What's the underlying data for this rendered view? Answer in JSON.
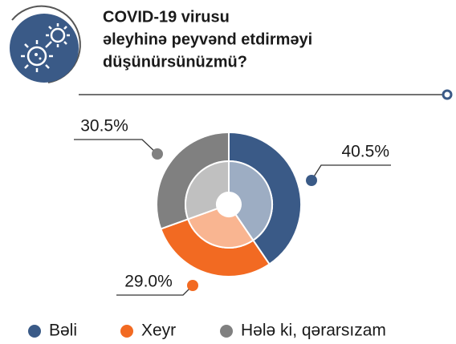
{
  "chart_data": {
    "type": "pie",
    "title": [
      "COVID-19 virusu",
      "əleyhinə peyvənd etdirməyi",
      "düşünürsünüzmü?"
    ],
    "categories": [
      "Bəli",
      "Xeyr",
      "Hələ ki, qərarsızam"
    ],
    "values": [
      40.5,
      29.0,
      30.5
    ],
    "value_labels": [
      "40.5%",
      "29.0%",
      "30.5%"
    ],
    "colors": [
      "#3a5a87",
      "#f26a22",
      "#808080"
    ],
    "legend": "bottom"
  }
}
